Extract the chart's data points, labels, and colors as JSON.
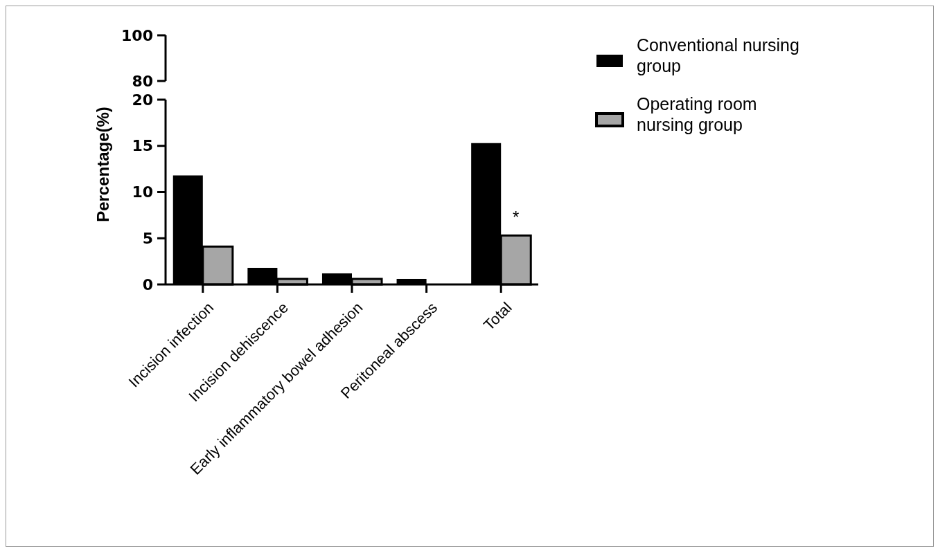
{
  "chart_data": [
    {
      "type": "other",
      "annotations": [
        "100",
        "80"
      ]
    },
    {
      "type": "bar",
      "categories": [
        "Incision infection",
        "Incision dehiscence",
        "Early inflammatory bowel adhesion",
        "Peritoneal abscess",
        "Total"
      ],
      "ylabel": "Percentage(%)",
      "ylim": [
        0,
        20
      ],
      "yticks": [
        0,
        5,
        10,
        15,
        20
      ],
      "legend": "top right",
      "series": [
        {
          "name": "Conventional nursing group",
          "color": "#000000",
          "values": [
            11.8,
            1.8,
            1.2,
            0.6,
            15.3
          ]
        },
        {
          "name": "Operating room nursing group",
          "color": "#a6a6a6",
          "values": [
            4.1,
            0.6,
            0.6,
            0,
            5.3
          ]
        }
      ],
      "annotations": [
        {
          "text": "*",
          "x": "Total",
          "y": 5.3
        }
      ]
    }
  ]
}
